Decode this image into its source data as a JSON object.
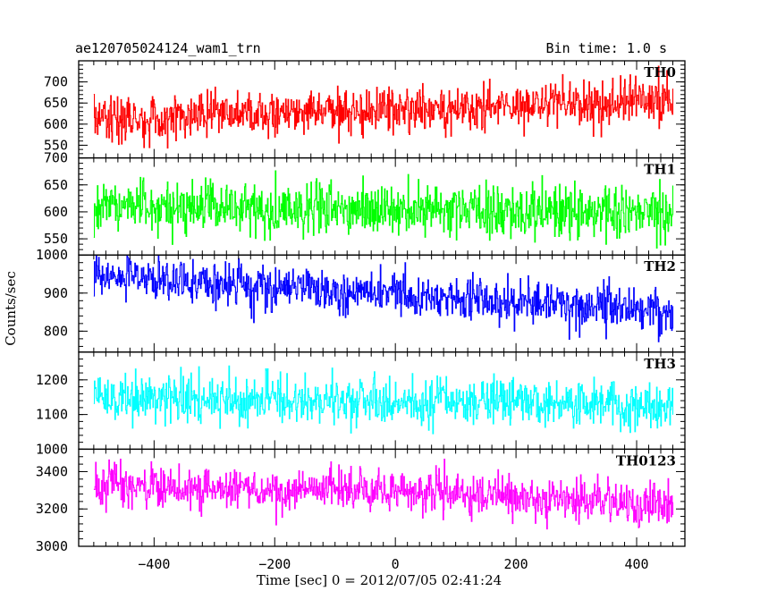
{
  "header": {
    "title": "ae120705024124_wam1_trn",
    "bin_time": "Bin time: 1.0 s"
  },
  "chart_data": {
    "type": "line",
    "title": "ae120705024124_wam1_trn",
    "subtitle": "Bin time: 1.0 s",
    "xlabel": "Time [sec] 0 = 2012/07/05 02:41:24",
    "ylabel": "Counts/sec",
    "xlim": [
      -525,
      480
    ],
    "x_start": -500,
    "x_end": 460,
    "x_step": 1,
    "x_ticks": [
      -400,
      -200,
      0,
      200,
      400
    ],
    "x_tick_labels": [
      "−400",
      "−200",
      "0",
      "200",
      "400"
    ],
    "grid": false,
    "panels": [
      {
        "name": "TH0",
        "color": "#ff0000",
        "ylim": [
          520,
          750
        ],
        "yticks": [
          550,
          600,
          650,
          700
        ],
        "trend": [
          {
            "x": -500,
            "y": 610
          },
          {
            "x": 0,
            "y": 635
          },
          {
            "x": 460,
            "y": 655
          }
        ],
        "noise_sd": 26
      },
      {
        "name": "TH1",
        "color": "#00ff00",
        "ylim": [
          520,
          700
        ],
        "yticks": [
          550,
          600,
          650,
          700
        ],
        "trend": [
          {
            "x": -500,
            "y": 610
          },
          {
            "x": 0,
            "y": 603
          },
          {
            "x": 460,
            "y": 598
          }
        ],
        "noise_sd": 24
      },
      {
        "name": "TH2",
        "color": "#0000ff",
        "ylim": [
          745,
          1000
        ],
        "yticks": [
          800,
          900,
          1000
        ],
        "trend": [
          {
            "x": -500,
            "y": 945
          },
          {
            "x": 0,
            "y": 895
          },
          {
            "x": 460,
            "y": 855
          }
        ],
        "noise_sd": 29
      },
      {
        "name": "TH3",
        "color": "#00ffff",
        "ylim": [
          1000,
          1280
        ],
        "yticks": [
          1000,
          1100,
          1200
        ],
        "trend": [
          {
            "x": -500,
            "y": 1145
          },
          {
            "x": 0,
            "y": 1140
          },
          {
            "x": 460,
            "y": 1130
          }
        ],
        "noise_sd": 34
      },
      {
        "name": "TH0123",
        "color": "#ff00ff",
        "ylim": [
          3000,
          3520
        ],
        "yticks": [
          3000,
          3200,
          3400
        ],
        "trend": [
          {
            "x": -500,
            "y": 3330
          },
          {
            "x": 0,
            "y": 3290
          },
          {
            "x": 460,
            "y": 3230
          }
        ],
        "noise_sd": 58
      }
    ]
  }
}
